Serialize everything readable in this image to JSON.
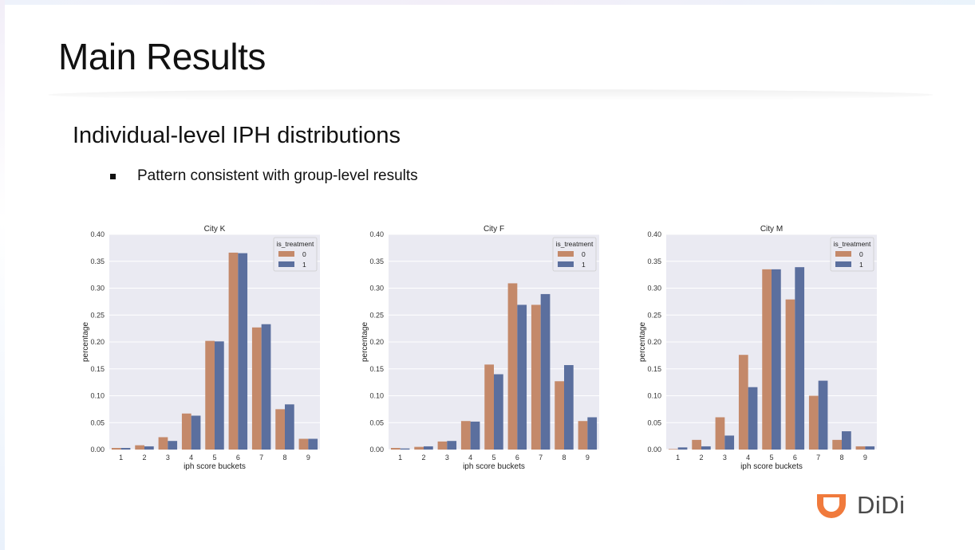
{
  "slide": {
    "title": "Main Results",
    "subtitle": "Individual-level IPH distributions",
    "bullet": "Pattern consistent with group-level results"
  },
  "logo": {
    "text": "DiDi",
    "icon": "didi-logo-icon",
    "color": "#f07a3c"
  },
  "colors": {
    "series_0": "#c4896a",
    "series_1": "#5b6f9e",
    "plot_bg": "#eaeaf2",
    "grid": "#ffffff"
  },
  "chart_data": [
    {
      "type": "bar",
      "title": "City K",
      "xlabel": "iph score buckets",
      "ylabel": "percentage",
      "ylim": [
        0,
        0.4
      ],
      "yticks": [
        "0.00",
        "0.05",
        "0.10",
        "0.15",
        "0.20",
        "0.25",
        "0.30",
        "0.35",
        "0.40"
      ],
      "categories": [
        "1",
        "2",
        "3",
        "4",
        "5",
        "6",
        "7",
        "8",
        "9"
      ],
      "legend": {
        "title": "is_treatment",
        "placement": "top-right"
      },
      "series": [
        {
          "name": "0",
          "values": [
            0.003,
            0.008,
            0.023,
            0.067,
            0.202,
            0.366,
            0.227,
            0.075,
            0.02
          ]
        },
        {
          "name": "1",
          "values": [
            0.003,
            0.006,
            0.016,
            0.063,
            0.201,
            0.365,
            0.233,
            0.084,
            0.02
          ]
        }
      ]
    },
    {
      "type": "bar",
      "title": "City F",
      "xlabel": "iph score buckets",
      "ylabel": "percentage",
      "ylim": [
        0,
        0.4
      ],
      "yticks": [
        "0.00",
        "0.05",
        "0.10",
        "0.15",
        "0.20",
        "0.25",
        "0.30",
        "0.35",
        "0.40"
      ],
      "categories": [
        "1",
        "2",
        "3",
        "4",
        "5",
        "6",
        "7",
        "8",
        "9"
      ],
      "legend": {
        "title": "is_treatment",
        "placement": "top-right"
      },
      "series": [
        {
          "name": "0",
          "values": [
            0.003,
            0.005,
            0.015,
            0.053,
            0.158,
            0.309,
            0.269,
            0.127,
            0.053
          ]
        },
        {
          "name": "1",
          "values": [
            0.002,
            0.006,
            0.016,
            0.052,
            0.14,
            0.269,
            0.289,
            0.157,
            0.06
          ]
        }
      ]
    },
    {
      "type": "bar",
      "title": "City M",
      "xlabel": "iph score buckets",
      "ylabel": "percentage",
      "ylim": [
        0,
        0.4
      ],
      "yticks": [
        "0.00",
        "0.05",
        "0.10",
        "0.15",
        "0.20",
        "0.25",
        "0.30",
        "0.35",
        "0.40"
      ],
      "categories": [
        "1",
        "2",
        "3",
        "4",
        "5",
        "6",
        "7",
        "8",
        "9"
      ],
      "legend": {
        "title": "is_treatment",
        "placement": "top-right"
      },
      "series": [
        {
          "name": "0",
          "values": [
            0.001,
            0.018,
            0.06,
            0.176,
            0.335,
            0.279,
            0.1,
            0.018,
            0.006
          ]
        },
        {
          "name": "1",
          "values": [
            0.004,
            0.006,
            0.026,
            0.116,
            0.335,
            0.339,
            0.128,
            0.034,
            0.006
          ]
        }
      ]
    }
  ]
}
